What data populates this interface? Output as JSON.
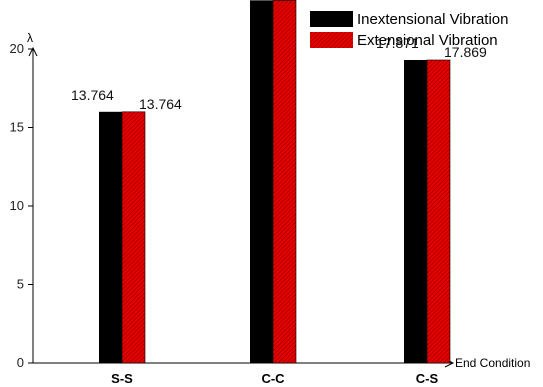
{
  "chart_data": {
    "type": "bar",
    "categories": [
      "S-S",
      "C-C",
      "C-S"
    ],
    "series": [
      {
        "name": "Inextensional Vibration",
        "values": [
          13.764,
          22.624,
          17.871
        ],
        "color": "#000000"
      },
      {
        "name": "Extensional Vibration",
        "values": [
          13.764,
          22.624,
          17.869
        ],
        "color": "#e00000",
        "pattern": "diagonal-hatch"
      }
    ],
    "bar_heights": [
      16,
      23.1,
      19.3
    ],
    "ylabel": "λ",
    "xlabel": "End Condition",
    "ylim": [
      0,
      24.5
    ],
    "yticks": [
      0,
      5,
      10,
      15,
      20
    ],
    "grid": false,
    "legend_position": "top-right"
  }
}
